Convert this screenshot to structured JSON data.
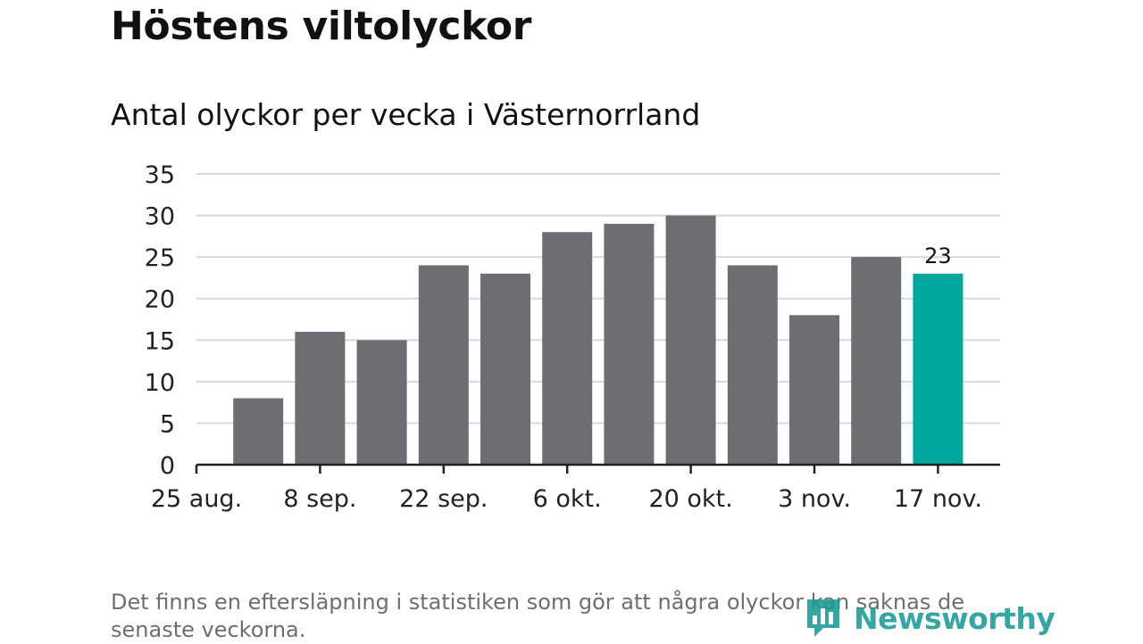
{
  "chart_data": {
    "type": "bar",
    "title": "Höstens viltolyckor",
    "subtitle": "Antal olyckor per vecka i Västernorrland",
    "xlabel": "",
    "ylabel": "",
    "ylim": [
      0,
      35
    ],
    "yticks": [
      0,
      5,
      10,
      15,
      20,
      25,
      30,
      35
    ],
    "grid": true,
    "week_start": [
      "25 aug.",
      "1 sep.",
      "8 sep.",
      "15 sep.",
      "22 sep.",
      "29 sep.",
      "6 okt.",
      "13 okt.",
      "20 okt.",
      "27 okt.",
      "3 nov.",
      "10 nov.",
      "17 nov."
    ],
    "values": [
      null,
      8,
      16,
      15,
      24,
      23,
      28,
      29,
      30,
      24,
      18,
      25,
      23
    ],
    "x_tick_labels": [
      "25 aug.",
      "8 sep.",
      "22 sep.",
      "6 okt.",
      "20 okt.",
      "3 nov.",
      "17 nov."
    ],
    "highlight_index": 12,
    "highlight_label": "23",
    "colors": {
      "bar": "#6e6d73",
      "highlight": "#00a79d",
      "grid": "#d9d9d9",
      "axis": "#222222"
    }
  },
  "footnote": "Det finns en eftersläpning i statistiken som gör att några olyckor kan saknas de senaste veckorna.",
  "logo": {
    "name": "Newsworthy",
    "color": "#1a9b96",
    "icon": "newsworthy-chart-icon"
  }
}
